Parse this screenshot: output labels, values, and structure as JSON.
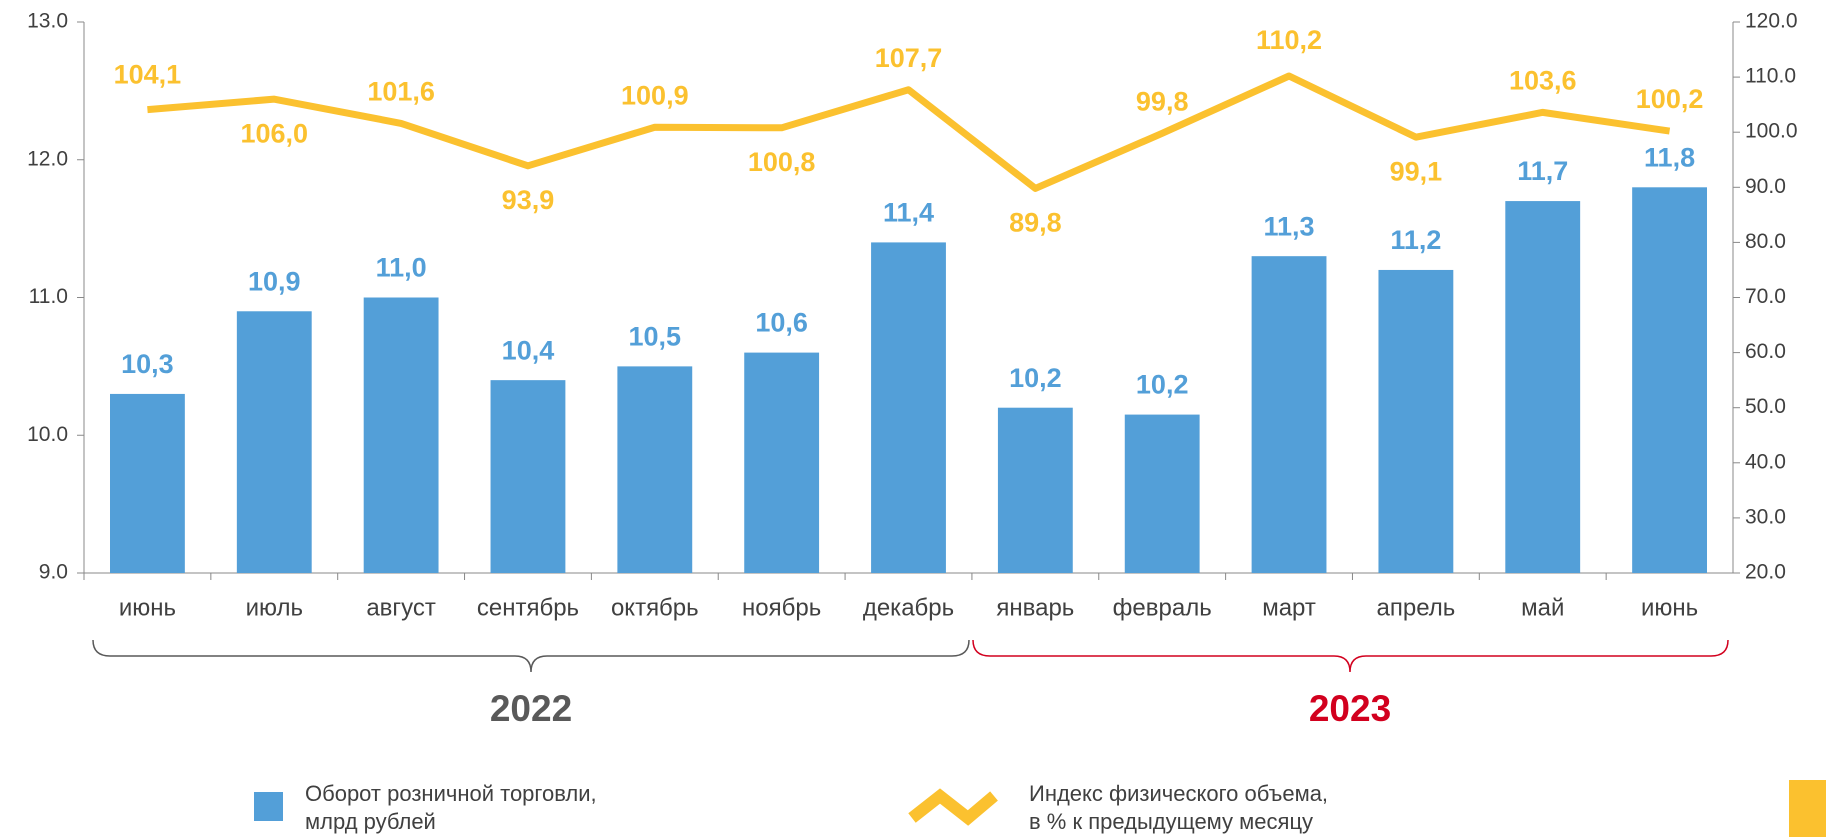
{
  "chart_data": {
    "type": "bar_line",
    "categories": [
      "июнь",
      "июль",
      "август",
      "сентябрь",
      "октябрь",
      "ноябрь",
      "декабрь",
      "январь",
      "февраль",
      "март",
      "апрель",
      "май",
      "июнь"
    ],
    "series": [
      {
        "name": "Оборот розничной торговли,\nмлрд рублей",
        "type": "bar",
        "color": "#539fd8",
        "values": [
          10.3,
          10.9,
          11.0,
          10.4,
          10.5,
          10.6,
          11.4,
          10.2,
          10.15,
          11.3,
          11.2,
          11.7,
          11.8
        ],
        "value_labels": [
          "10,3",
          "10,9",
          "11,0",
          "10,4",
          "10,5",
          "10,6",
          "11,4",
          "10,2",
          "10,2",
          "11,3",
          "11,2",
          "11,7",
          "11,8"
        ]
      },
      {
        "name": "Индекс физического объема,\nв % к предыдущему месяцу",
        "type": "line",
        "axis": "y2",
        "color": "#fbc12f",
        "values": [
          104.1,
          106.0,
          101.6,
          93.9,
          100.9,
          100.8,
          107.7,
          89.8,
          99.8,
          110.2,
          99.1,
          103.6,
          100.2
        ],
        "value_labels": [
          "104,1",
          "106,0",
          "101,6",
          "93,9",
          "100,9",
          "100,8",
          "107,7",
          "89,8",
          "99,8",
          "110,2",
          "99,1",
          "103,6",
          "100,2"
        ]
      }
    ],
    "ylim": [
      9,
      13
    ],
    "yticks": [
      {
        "value": 9,
        "label": "9.0"
      },
      {
        "value": 10,
        "label": "10.0"
      },
      {
        "value": 11,
        "label": "11.0"
      },
      {
        "value": 12,
        "label": "12.0"
      },
      {
        "value": 13,
        "label": "13.0"
      }
    ],
    "y2lim": [
      20,
      120
    ],
    "y2ticks": [
      {
        "value": 20,
        "label": "20.0"
      },
      {
        "value": 30,
        "label": "30.0"
      },
      {
        "value": 40,
        "label": "40.0"
      },
      {
        "value": 50,
        "label": "50.0"
      },
      {
        "value": 60,
        "label": "60.0"
      },
      {
        "value": 70,
        "label": "70.0"
      },
      {
        "value": 80,
        "label": "80.0"
      },
      {
        "value": 90,
        "label": "90.0"
      },
      {
        "value": 100,
        "label": "100.0"
      },
      {
        "value": 110,
        "label": "110.0"
      },
      {
        "value": 120,
        "label": "120.0"
      }
    ],
    "annotations": [
      {
        "text": "2022",
        "color": "#595959"
      },
      {
        "text": "2023",
        "color": "#d2001e"
      }
    ]
  }
}
